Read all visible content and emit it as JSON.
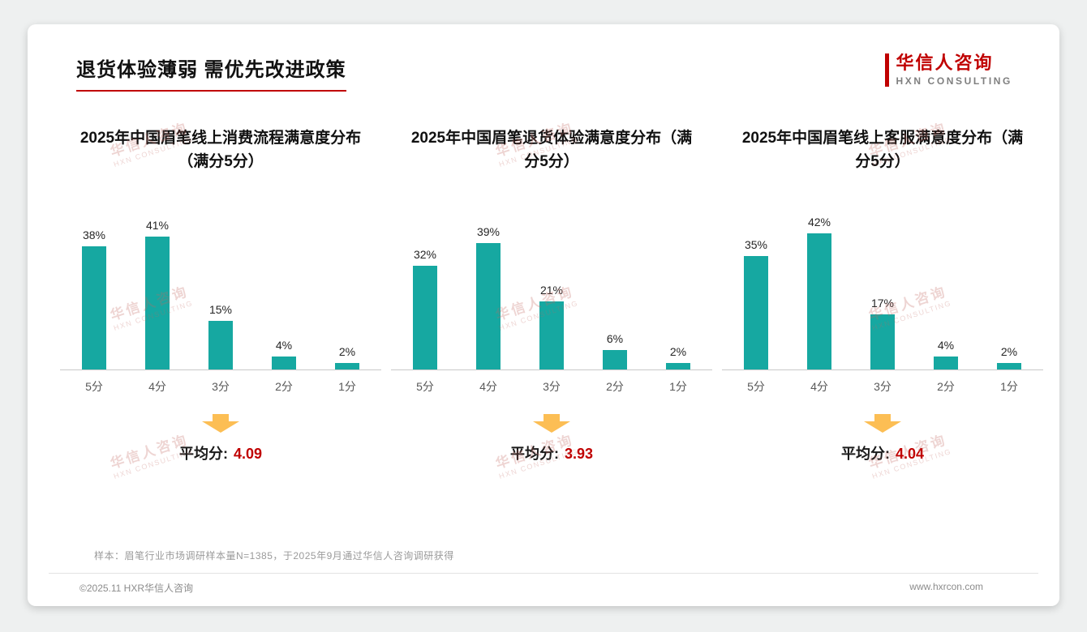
{
  "page": {
    "title": "退货体验薄弱 需优先改进政策",
    "logo": {
      "name": "华信人咨询",
      "subtitle": "HXN CONSULTING"
    },
    "watermark": {
      "line1": "华信人咨询",
      "line2": "HXN CONSULTING"
    },
    "note": "样本：眉笔行业市场调研样本量N=1385，于2025年9月通过华信人咨询调研获得",
    "footer_left": "©2025.11 HXR华信人咨询",
    "footer_right": "www.hxrcon.com"
  },
  "colors": {
    "bar": "#16A8A1",
    "accent": "#C00000",
    "arrow": "#FCBE54",
    "axis": "#C9C9C9"
  },
  "chart_data": [
    {
      "type": "bar",
      "title": "2025年中国眉笔线上消费流程满意度分布（满分5分）",
      "categories": [
        "5分",
        "4分",
        "3分",
        "2分",
        "1分"
      ],
      "values": [
        38,
        41,
        15,
        4,
        2
      ],
      "unit": "%",
      "ylim": [
        0,
        45
      ],
      "grid": false,
      "avg_label": "平均分:",
      "avg_value": "4.09"
    },
    {
      "type": "bar",
      "title": "2025年中国眉笔退货体验满意度分布（满分5分）",
      "categories": [
        "5分",
        "4分",
        "3分",
        "2分",
        "1分"
      ],
      "values": [
        32,
        39,
        21,
        6,
        2
      ],
      "unit": "%",
      "ylim": [
        0,
        45
      ],
      "grid": false,
      "avg_label": "平均分:",
      "avg_value": "3.93"
    },
    {
      "type": "bar",
      "title": "2025年中国眉笔线上客服满意度分布（满分5分）",
      "categories": [
        "5分",
        "4分",
        "3分",
        "2分",
        "1分"
      ],
      "values": [
        35,
        42,
        17,
        4,
        2
      ],
      "unit": "%",
      "ylim": [
        0,
        45
      ],
      "grid": false,
      "avg_label": "平均分:",
      "avg_value": "4.04"
    }
  ]
}
